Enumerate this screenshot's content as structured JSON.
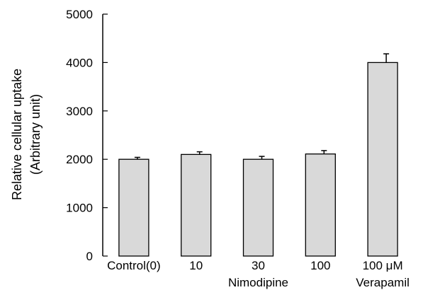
{
  "chart_data": {
    "type": "bar",
    "categories": [
      "Control(0)",
      "10",
      "30",
      "100",
      "100 μM"
    ],
    "values": [
      2000,
      2100,
      2000,
      2110,
      4000
    ],
    "errors": [
      40,
      55,
      60,
      70,
      180
    ],
    "group_labels": [
      {
        "label": "Nimodipine",
        "categories": [
          "10",
          "30",
          "100"
        ]
      },
      {
        "label": "Verapamil",
        "categories": [
          "100 μM"
        ]
      }
    ],
    "ylabel_line1": "Relative cellular uptake",
    "ylabel_line2": "(Arbitrary unit)",
    "xlabel": "",
    "title": "",
    "ylim": [
      0,
      5000
    ],
    "yticks": [
      0,
      1000,
      2000,
      3000,
      4000,
      5000
    ],
    "grid": false,
    "legend": "none",
    "bar_color": "#d9d9d9",
    "edge_color": "#000000"
  }
}
